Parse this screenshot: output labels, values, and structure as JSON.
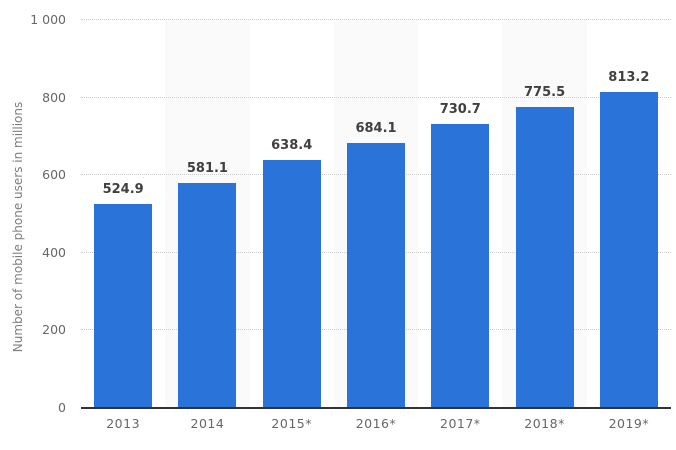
{
  "chart_data": {
    "type": "bar",
    "categories": [
      "2013",
      "2014",
      "2015*",
      "2016*",
      "2017*",
      "2018*",
      "2019*"
    ],
    "values": [
      524.9,
      581.1,
      638.4,
      684.1,
      730.7,
      775.5,
      813.2
    ],
    "value_labels": [
      "524.9",
      "581.1",
      "638.4",
      "684.1",
      "730.7",
      "775.5",
      "813.2"
    ],
    "title": "",
    "xlabel": "",
    "ylabel": "Number of mobile phone users in millions",
    "ylim": [
      0,
      1000
    ],
    "ytick_values": [
      0,
      200,
      400,
      600,
      800,
      1000
    ],
    "ytick_labels": [
      "0",
      "200",
      "400",
      "600",
      "800",
      "1 000"
    ],
    "grid": "horizontal-dotted",
    "legend_position": "none",
    "alternating_column_bands": [
      1,
      3,
      5
    ],
    "colors": {
      "bar": "#2a74d9",
      "band": "#fafafa",
      "gridline": "#cccccc",
      "axis_line": "#333333",
      "value_label": "#404040",
      "tick_label": "#666666",
      "axis_title": "#7d7d7d",
      "background": "#ffffff"
    }
  }
}
